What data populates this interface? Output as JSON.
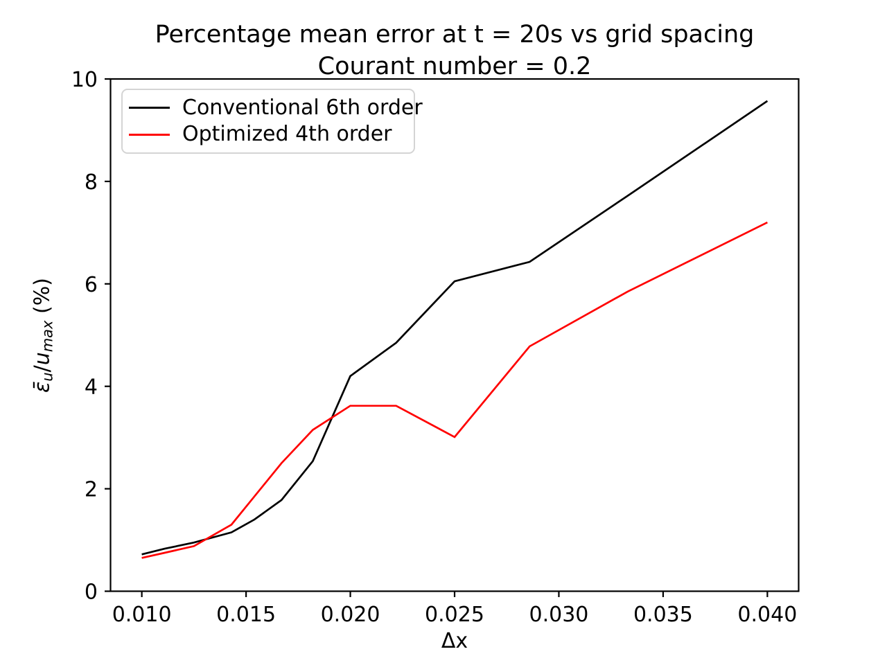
{
  "figure": {
    "title_line1": "Percentage mean error at t = 20s vs grid spacing",
    "title_line2": "Courant number = 0.2",
    "xlabel": "Δx",
    "ylabel_text": "ε̄u/umax (%)",
    "ylabel_parts": [
      {
        "text": "ε̄",
        "italic": true,
        "sub": false
      },
      {
        "text": "u",
        "italic": true,
        "sub": true
      },
      {
        "text": "/",
        "italic": false,
        "sub": false
      },
      {
        "text": "u",
        "italic": true,
        "sub": false
      },
      {
        "text": "max",
        "italic": true,
        "sub": true
      },
      {
        "text": " (%)",
        "italic": false,
        "sub": false
      }
    ],
    "legend": [
      {
        "label": "Conventional 6th order",
        "color": "#000000"
      },
      {
        "label": "Optimized 4th order",
        "color": "#ff0000"
      }
    ]
  },
  "chart_data": {
    "type": "line",
    "title": "Percentage mean error at t = 20s vs grid spacing\nCourant number = 0.2",
    "xlabel": "Δx",
    "ylabel": "ε̄_u/u_max (%)",
    "xlim": [
      0.0085,
      0.0415
    ],
    "ylim": [
      0,
      10
    ],
    "grid": false,
    "legend_position": "upper left",
    "xticks": {
      "values": [
        0.01,
        0.015,
        0.02,
        0.025,
        0.03,
        0.035,
        0.04
      ],
      "labels": [
        "0.010",
        "0.015",
        "0.020",
        "0.025",
        "0.030",
        "0.035",
        "0.040"
      ]
    },
    "yticks": {
      "values": [
        0,
        2,
        4,
        6,
        8,
        10
      ],
      "labels": [
        "0",
        "2",
        "4",
        "6",
        "8",
        "10"
      ]
    },
    "x": [
      0.01,
      0.0111,
      0.0125,
      0.0143,
      0.0154,
      0.0167,
      0.0182,
      0.02,
      0.0222,
      0.025,
      0.0286,
      0.0333,
      0.04
    ],
    "series": [
      {
        "name": "Conventional 6th order",
        "color": "#000000",
        "values": [
          0.72,
          0.83,
          0.95,
          1.15,
          1.4,
          1.78,
          2.54,
          4.2,
          4.85,
          6.05,
          6.43,
          7.72,
          9.57
        ]
      },
      {
        "name": "Optimized 4th order",
        "color": "#ff0000",
        "values": [
          0.65,
          0.75,
          0.88,
          1.3,
          1.85,
          2.5,
          3.15,
          3.62,
          3.62,
          3.01,
          4.78,
          5.85,
          7.2
        ]
      }
    ]
  }
}
